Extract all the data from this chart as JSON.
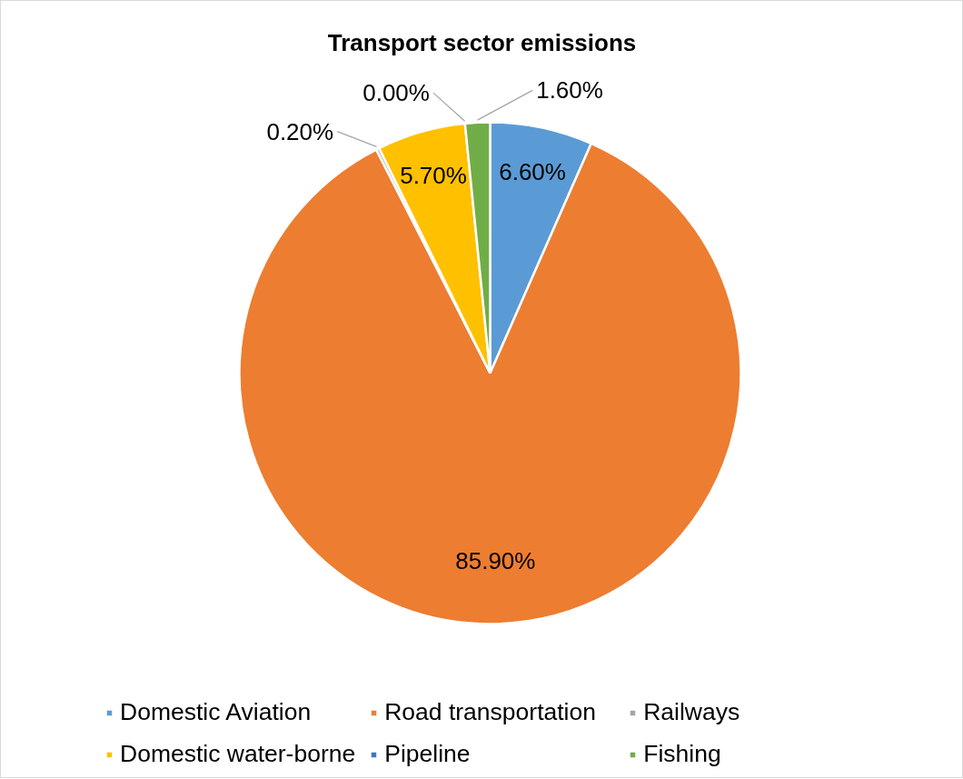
{
  "chart_data": {
    "type": "pie",
    "title": "Transport sector emissions",
    "categories": [
      "Domestic Aviation",
      "Road transportation",
      "Railways",
      "Domestic water-borne",
      "Pipeline",
      "Fishing"
    ],
    "values": [
      6.6,
      85.9,
      0.2,
      5.7,
      0.0,
      1.6
    ],
    "colors": [
      "#5b9bd5",
      "#ed7d31",
      "#a5a5a5",
      "#ffc000",
      "#4472c4",
      "#70ad47"
    ],
    "value_labels": [
      "6.60%",
      "85.90%",
      "0.20%",
      "5.70%",
      "0.00%",
      "1.60%"
    ],
    "legend": "bottom"
  }
}
